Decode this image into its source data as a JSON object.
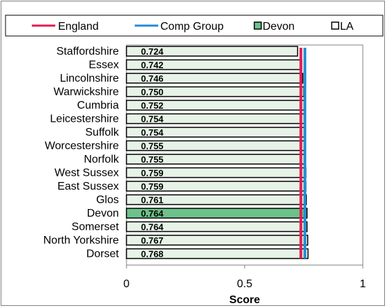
{
  "chart_data": {
    "type": "bar",
    "orientation": "horizontal",
    "title": "",
    "xlabel": "Score",
    "ylabel": "",
    "xlim": [
      0,
      1
    ],
    "xticks": [
      "0",
      "0.5",
      "1"
    ],
    "legend_position": "top",
    "categories": [
      "Staffordshire",
      "Essex",
      "Lincolnshire",
      "Warwickshire",
      "Cumbria",
      "Leicestershire",
      "Suffolk",
      "Worcestershire",
      "Norfolk",
      "West Sussex",
      "East Sussex",
      "Glos",
      "Devon",
      "Somerset",
      "North Yorkshire",
      "Dorset"
    ],
    "values": [
      0.724,
      0.742,
      0.746,
      0.75,
      0.752,
      0.754,
      0.754,
      0.755,
      0.755,
      0.759,
      0.759,
      0.761,
      0.764,
      0.764,
      0.767,
      0.768
    ],
    "data_labels": [
      "0.724",
      "0.742",
      "0.746",
      "0.750",
      "0.752",
      "0.754",
      "0.754",
      "0.755",
      "0.755",
      "0.759",
      "0.759",
      "0.761",
      "0.764",
      "0.764",
      "0.767",
      "0.768"
    ],
    "highlight_category": "Devon",
    "reference_lines": [
      {
        "name": "England",
        "value": 0.738,
        "color": "#e8194f"
      },
      {
        "name": "Comp Group",
        "value": 0.755,
        "color": "#1f8fd6"
      }
    ],
    "legend": [
      "England",
      "Comp Group",
      "Devon",
      "LA"
    ],
    "colors": {
      "la_bar": "#e6f3e6",
      "devon_bar": "#6cc28a",
      "bar_border": "#000000",
      "england": "#e8194f",
      "comp_group": "#1f8fd6"
    }
  }
}
